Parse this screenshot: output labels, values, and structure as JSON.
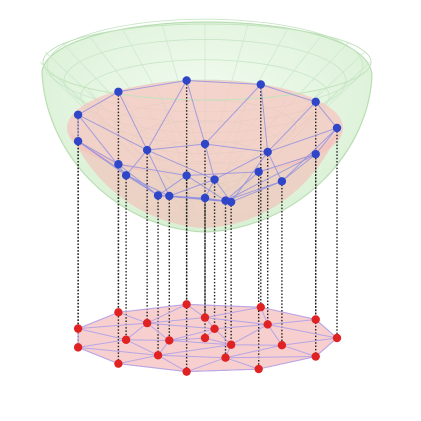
{
  "figure": {
    "upper_surface": "paraboloid",
    "lower_surface": "triangulated-disk",
    "point_count": 22
  },
  "colors": {
    "bowl_fill": "#e3f5df",
    "bowl_edge": "#b9deb3",
    "grid_line": "#c8e6c6",
    "bowl_inner_disk": "#f6c6c0",
    "upper_node": "#2f46c8",
    "upper_edge": "#8f8fe0",
    "lower_disk": "#f7cfcf",
    "lower_edge": "#b7a6e6",
    "lower_node": "#e02222",
    "link": "#222222"
  },
  "nodes": [
    {
      "id": "p1",
      "angle_deg": 0,
      "radius": 1.0
    },
    {
      "id": "p2",
      "angle_deg": 33,
      "radius": 1.0
    },
    {
      "id": "p3",
      "angle_deg": 66,
      "radius": 1.0
    },
    {
      "id": "p4",
      "angle_deg": 98,
      "radius": 1.0
    },
    {
      "id": "p5",
      "angle_deg": 131,
      "radius": 1.0
    },
    {
      "id": "p6",
      "angle_deg": 164,
      "radius": 1.0
    },
    {
      "id": "p7",
      "angle_deg": 196,
      "radius": 1.0
    },
    {
      "id": "p8",
      "angle_deg": 229,
      "radius": 1.0
    },
    {
      "id": "p9",
      "angle_deg": 262,
      "radius": 1.0
    },
    {
      "id": "p10",
      "angle_deg": 295,
      "radius": 1.0
    },
    {
      "id": "p11",
      "angle_deg": 327,
      "radius": 1.0
    },
    {
      "id": "p12",
      "angle_deg": 20,
      "radius": 0.62
    },
    {
      "id": "p13",
      "angle_deg": 75,
      "radius": 0.6
    },
    {
      "id": "p14",
      "angle_deg": 125,
      "radius": 0.62
    },
    {
      "id": "p15",
      "angle_deg": 175,
      "radius": 0.6
    },
    {
      "id": "p16",
      "angle_deg": 225,
      "radius": 0.62
    },
    {
      "id": "p17",
      "angle_deg": 270,
      "radius": 0.6
    },
    {
      "id": "p18",
      "angle_deg": 320,
      "radius": 0.62
    },
    {
      "id": "p19",
      "angle_deg": 45,
      "radius": 0.28
    },
    {
      "id": "p20",
      "angle_deg": 165,
      "radius": 0.28
    },
    {
      "id": "p21",
      "angle_deg": 285,
      "radius": 0.28
    },
    {
      "id": "p22",
      "angle_deg": 0,
      "radius": 0.0
    }
  ],
  "edges": [
    [
      "p1",
      "p2"
    ],
    [
      "p2",
      "p3"
    ],
    [
      "p3",
      "p4"
    ],
    [
      "p4",
      "p5"
    ],
    [
      "p5",
      "p6"
    ],
    [
      "p6",
      "p7"
    ],
    [
      "p7",
      "p8"
    ],
    [
      "p8",
      "p9"
    ],
    [
      "p9",
      "p10"
    ],
    [
      "p10",
      "p11"
    ],
    [
      "p11",
      "p1"
    ],
    [
      "p1",
      "p12"
    ],
    [
      "p2",
      "p12"
    ],
    [
      "p2",
      "p13"
    ],
    [
      "p3",
      "p13"
    ],
    [
      "p4",
      "p13"
    ],
    [
      "p4",
      "p14"
    ],
    [
      "p5",
      "p14"
    ],
    [
      "p6",
      "p14"
    ],
    [
      "p6",
      "p15"
    ],
    [
      "p7",
      "p15"
    ],
    [
      "p7",
      "p16"
    ],
    [
      "p8",
      "p16"
    ],
    [
      "p9",
      "p16"
    ],
    [
      "p9",
      "p17"
    ],
    [
      "p10",
      "p17"
    ],
    [
      "p10",
      "p18"
    ],
    [
      "p11",
      "p18"
    ],
    [
      "p1",
      "p18"
    ],
    [
      "p12",
      "p13"
    ],
    [
      "p13",
      "p14"
    ],
    [
      "p14",
      "p15"
    ],
    [
      "p15",
      "p16"
    ],
    [
      "p16",
      "p17"
    ],
    [
      "p17",
      "p18"
    ],
    [
      "p18",
      "p12"
    ],
    [
      "p12",
      "p19"
    ],
    [
      "p13",
      "p19"
    ],
    [
      "p14",
      "p20"
    ],
    [
      "p15",
      "p20"
    ],
    [
      "p16",
      "p20"
    ],
    [
      "p16",
      "p21"
    ],
    [
      "p17",
      "p21"
    ],
    [
      "p18",
      "p21"
    ],
    [
      "p14",
      "p19"
    ],
    [
      "p18",
      "p19"
    ],
    [
      "p19",
      "p22"
    ],
    [
      "p20",
      "p22"
    ],
    [
      "p21",
      "p22"
    ],
    [
      "p19",
      "p20"
    ],
    [
      "p20",
      "p21"
    ],
    [
      "p21",
      "p19"
    ]
  ]
}
